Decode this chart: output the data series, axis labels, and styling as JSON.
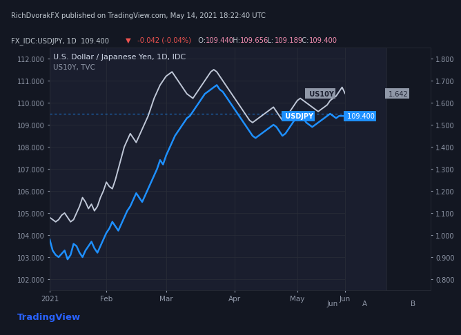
{
  "bg_color": "#131722",
  "plot_bg_color": "#1a1e2e",
  "grid_color": "#2a2e39",
  "title_line1": "U.S. Dollar / Japanese Yen, 1D, IDC",
  "title_line2": "US10Y, TVC",
  "header_line1": "RichDvorakFX published on TradingView.com, May 14, 2021 18:22:40 UTC",
  "xticklabels": [
    "2021",
    "Feb",
    "Mar",
    "Apr",
    "May",
    "Jun"
  ],
  "yticks_left": [
    102,
    103,
    104,
    105,
    106,
    107,
    108,
    109,
    110,
    111,
    112
  ],
  "yticks_right": [
    0.8,
    0.9,
    1.0,
    1.1,
    1.2,
    1.3,
    1.4,
    1.5,
    1.6,
    1.7,
    1.8
  ],
  "ylim_left": [
    101.5,
    112.5
  ],
  "ylim_right": [
    0.75,
    1.85
  ],
  "usdjpy_color": "#1e90ff",
  "us10y_color": "#c0c8d8",
  "dashed_line_color": "#1e90ff",
  "dashed_line_y": 109.5,
  "label_usdjpy": "USDJPY",
  "label_us10y": "US10Y",
  "label_usdjpy_value": "109.400",
  "label_us10y_value": "1.642",
  "footer_text": "TradingView",
  "usdjpy_data": [
    103.8,
    103.3,
    103.1,
    103.0,
    103.15,
    103.3,
    102.9,
    103.1,
    103.6,
    103.5,
    103.2,
    103.0,
    103.3,
    103.5,
    103.7,
    103.4,
    103.2,
    103.5,
    103.8,
    104.1,
    104.3,
    104.6,
    104.4,
    104.2,
    104.5,
    104.8,
    105.1,
    105.3,
    105.6,
    105.9,
    105.7,
    105.5,
    105.8,
    106.1,
    106.4,
    106.7,
    107.0,
    107.4,
    107.2,
    107.6,
    107.9,
    108.2,
    108.5,
    108.7,
    108.9,
    109.1,
    109.3,
    109.4,
    109.6,
    109.8,
    110.0,
    110.2,
    110.4,
    110.5,
    110.6,
    110.7,
    110.8,
    110.6,
    110.5,
    110.3,
    110.1,
    109.9,
    109.7,
    109.5,
    109.3,
    109.1,
    108.9,
    108.7,
    108.5,
    108.4,
    108.5,
    108.6,
    108.7,
    108.8,
    108.9,
    109.0,
    108.9,
    108.7,
    108.5,
    108.6,
    108.8,
    109.0,
    109.2,
    109.4,
    109.5,
    109.3,
    109.1,
    109.0,
    108.9,
    109.0,
    109.1,
    109.2,
    109.3,
    109.4,
    109.5,
    109.4,
    109.3,
    109.4,
    109.4,
    109.4
  ],
  "us10y_data": [
    1.08,
    1.07,
    1.06,
    1.07,
    1.09,
    1.1,
    1.08,
    1.06,
    1.07,
    1.1,
    1.13,
    1.17,
    1.15,
    1.12,
    1.14,
    1.11,
    1.13,
    1.17,
    1.2,
    1.24,
    1.22,
    1.21,
    1.25,
    1.3,
    1.35,
    1.4,
    1.43,
    1.46,
    1.44,
    1.42,
    1.45,
    1.48,
    1.51,
    1.54,
    1.58,
    1.62,
    1.65,
    1.68,
    1.7,
    1.72,
    1.73,
    1.74,
    1.72,
    1.7,
    1.68,
    1.66,
    1.64,
    1.63,
    1.62,
    1.64,
    1.66,
    1.68,
    1.7,
    1.72,
    1.74,
    1.75,
    1.74,
    1.72,
    1.7,
    1.68,
    1.66,
    1.64,
    1.62,
    1.6,
    1.58,
    1.56,
    1.54,
    1.52,
    1.51,
    1.52,
    1.53,
    1.54,
    1.55,
    1.56,
    1.57,
    1.58,
    1.56,
    1.54,
    1.52,
    1.53,
    1.55,
    1.57,
    1.59,
    1.61,
    1.62,
    1.61,
    1.6,
    1.59,
    1.58,
    1.57,
    1.56,
    1.57,
    1.58,
    1.59,
    1.61,
    1.62,
    1.63,
    1.65,
    1.67,
    1.642
  ]
}
